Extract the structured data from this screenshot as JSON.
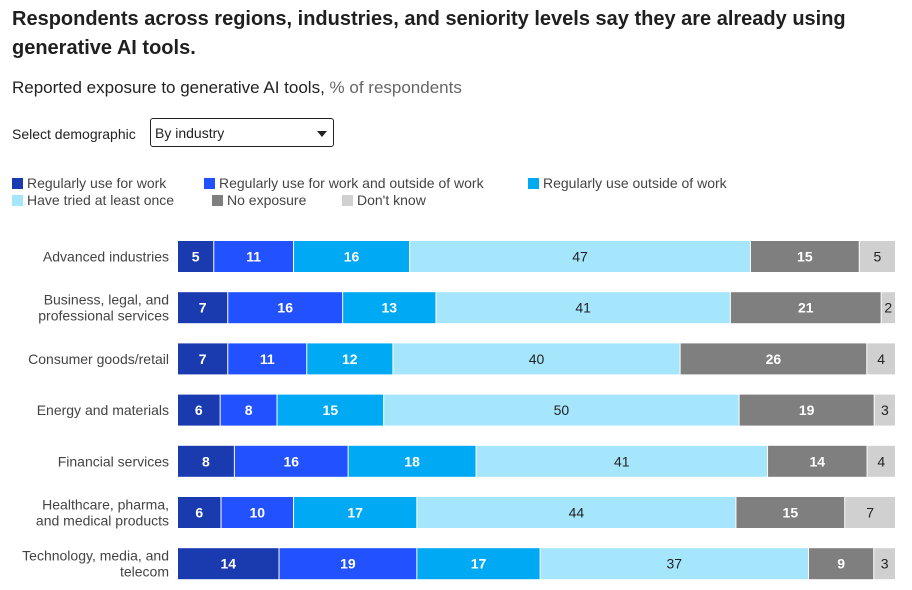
{
  "title": "Respondents across regions, industries, and seniority levels say they are already using generative AI tools.",
  "subtitle": {
    "main": "Reported exposure to generative AI tools,",
    "unit": "% of respondents"
  },
  "selector": {
    "label": "Select demographic",
    "value": "By industry"
  },
  "colors": {
    "use_work": "#1a3bb0",
    "use_work_outside": "#2251ff",
    "use_outside": "#00a9f4",
    "tried": "#a6e6fd",
    "no_exposure": "#7f7f7f",
    "dont_know": "#d0d0d0"
  },
  "chart_data": {
    "type": "bar",
    "orientation": "horizontal",
    "stacked": true,
    "percent_scale": true,
    "xlim": [
      0,
      100
    ],
    "legend": "top",
    "categories": [
      "Advanced industries",
      "Business, legal, and professional services",
      "Consumer goods/retail",
      "Energy and materials",
      "Financial services",
      "Healthcare, pharma, and medical products",
      "Technology, media, and telecom"
    ],
    "category_lines": [
      [
        "Advanced industries"
      ],
      [
        "Business, legal, and",
        "professional services"
      ],
      [
        "Consumer goods/retail"
      ],
      [
        "Energy and materials"
      ],
      [
        "Financial services"
      ],
      [
        "Healthcare, pharma,",
        "and medical products"
      ],
      [
        "Technology, media, and",
        "telecom"
      ]
    ],
    "series": [
      {
        "name": "Regularly use for work",
        "color": "#1a3bb0",
        "label_color": "#ffffff",
        "values": [
          5,
          7,
          7,
          6,
          8,
          6,
          14
        ]
      },
      {
        "name": "Regularly use for work and outside of work",
        "color": "#2251ff",
        "label_color": "#ffffff",
        "values": [
          11,
          16,
          11,
          8,
          16,
          10,
          19
        ]
      },
      {
        "name": "Regularly use outside of work",
        "color": "#00a9f4",
        "label_color": "#ffffff",
        "values": [
          16,
          13,
          12,
          15,
          18,
          17,
          17
        ]
      },
      {
        "name": "Have tried at least once",
        "color": "#a6e6fd",
        "label_color": "#222222",
        "values": [
          47,
          41,
          40,
          50,
          41,
          44,
          37
        ]
      },
      {
        "name": "No exposure",
        "color": "#7f7f7f",
        "label_color": "#ffffff",
        "values": [
          15,
          21,
          26,
          19,
          14,
          15,
          9
        ]
      },
      {
        "name": "Don't know",
        "color": "#d0d0d0",
        "label_color": "#222222",
        "values": [
          5,
          2,
          4,
          3,
          4,
          7,
          3
        ]
      }
    ]
  }
}
